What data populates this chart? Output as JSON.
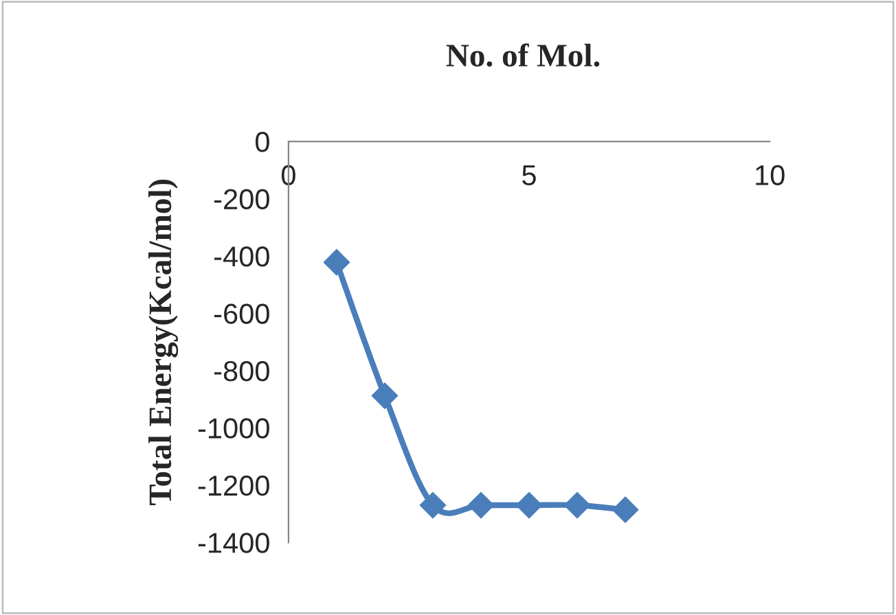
{
  "chart_data": {
    "type": "line",
    "title": "No. of Mol.",
    "ylabel": "Total Energy(Kcal/mol)",
    "x": [
      1,
      2,
      3,
      4,
      5,
      6,
      7
    ],
    "series": [
      {
        "color": "#4a7ebb",
        "values": [
          -422,
          -888,
          -1270,
          -1270,
          -1270,
          -1270,
          -1286
        ]
      }
    ],
    "xlim": [
      0,
      10
    ],
    "xticks": [
      0,
      5,
      10
    ],
    "ylim": [
      -1400,
      0
    ],
    "yticks": [
      0,
      -200,
      -400,
      -600,
      -800,
      -1000,
      -1200,
      -1400
    ],
    "marker": "diamond",
    "line_style": "solid",
    "grid": false,
    "legend": false
  }
}
